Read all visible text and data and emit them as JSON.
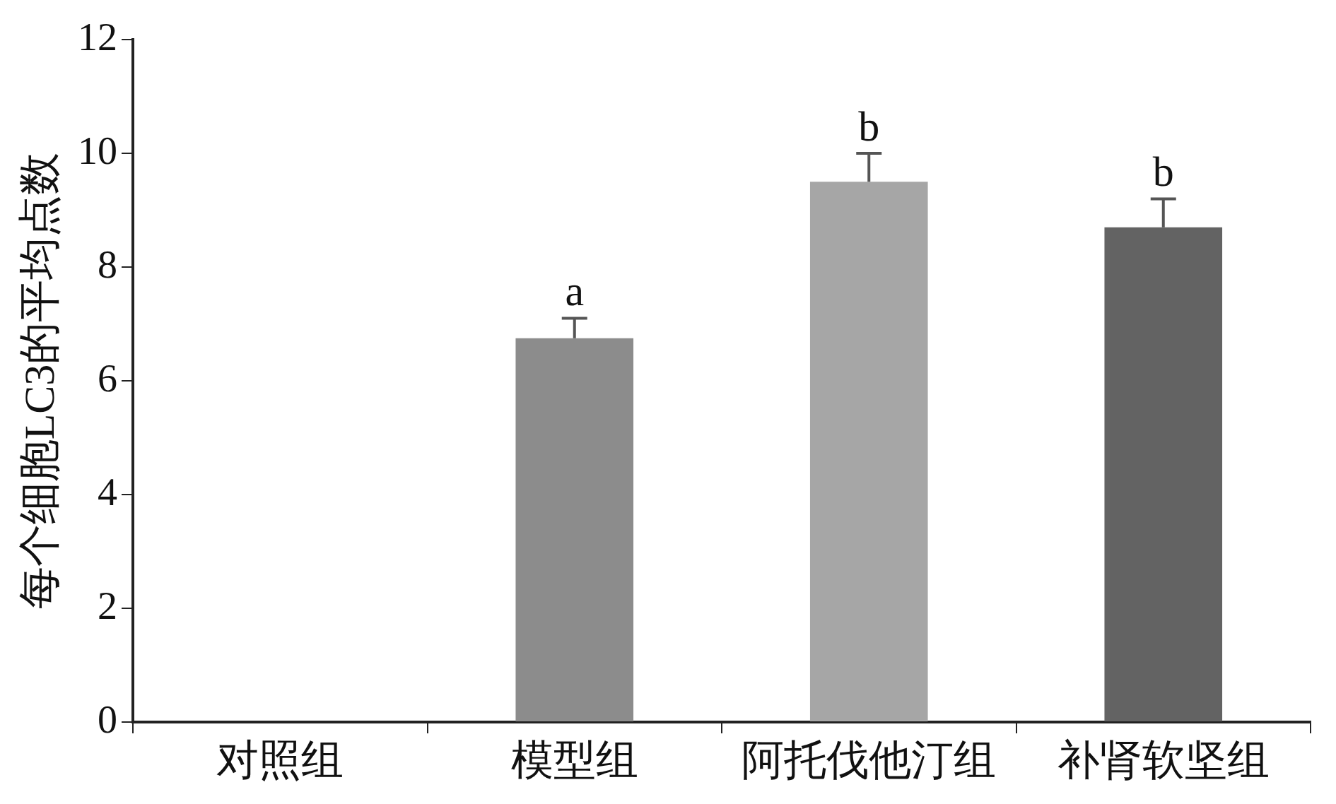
{
  "chart_data": {
    "type": "bar",
    "ylabel": "每个细胞LC3的平均点数",
    "categories": [
      "对照组",
      "模型组",
      "阿托伐他汀组",
      "补肾软坚组"
    ],
    "values": [
      null,
      6.75,
      9.5,
      8.7
    ],
    "colors": [
      "#8c8c8c",
      "#8c8c8c",
      "#a6a6a6",
      "#636363"
    ],
    "errors": [
      null,
      [
        6.75,
        7.1
      ],
      [
        9.5,
        10.0
      ],
      [
        8.7,
        9.2
      ]
    ],
    "ylim": [
      0,
      12
    ],
    "yticks": [
      0,
      2,
      4,
      6,
      8,
      10,
      12
    ],
    "grid": false,
    "legend": false,
    "annotations": [
      {
        "text": "a",
        "x": "模型组",
        "y": 7.1
      },
      {
        "text": "b",
        "x": "阿托伐他汀组",
        "y": 10.0
      },
      {
        "text": "b",
        "x": "补肾软坚组",
        "y": 9.2
      }
    ]
  }
}
